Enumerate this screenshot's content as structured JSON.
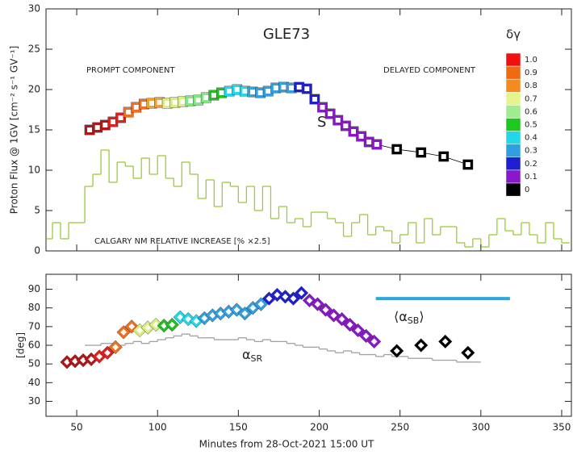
{
  "chart_data": [
    {
      "type": "scatter",
      "title": "GLE73",
      "ylabel": "Proton Flux @ 1GV [cm⁻² s⁻¹ GV⁻¹]",
      "xlim": [
        31,
        356
      ],
      "xticks": [
        50,
        100,
        150,
        200,
        250,
        300,
        350
      ],
      "ylim": [
        0,
        30
      ],
      "yticks": [
        0,
        5,
        10,
        15,
        20,
        25,
        30
      ],
      "annotations": [
        "PROMPT COMPONENT",
        "DELAYED COMPONENT"
      ],
      "series": [
        {
          "name": "S",
          "line_color": "#000000",
          "x": [
            58,
            62.8,
            67.6,
            72.4,
            77.2,
            82,
            86.8,
            91.6,
            96.4,
            101.2,
            106,
            110.8,
            115.6,
            120.4,
            125.2,
            130,
            134.8,
            139.6,
            144.4,
            149.2,
            154,
            158.8,
            163.6,
            168.4,
            173.2,
            178,
            182.8,
            187.6,
            192.4,
            197.2,
            202,
            206.8,
            211.6,
            216.4,
            221.2,
            226,
            230.8,
            235.6,
            248,
            263,
            277,
            292
          ],
          "values": [
            15.0,
            15.3,
            15.6,
            16.0,
            16.5,
            17.2,
            17.8,
            18.2,
            18.3,
            18.4,
            18.3,
            18.4,
            18.5,
            18.6,
            18.7,
            19.0,
            19.3,
            19.6,
            19.8,
            20.0,
            19.8,
            19.7,
            19.6,
            19.8,
            20.2,
            20.3,
            20.2,
            20.3,
            20.1,
            18.8,
            17.8,
            17.0,
            16.2,
            15.5,
            14.8,
            14.2,
            13.5,
            13.2,
            12.6,
            12.2,
            11.7,
            10.7
          ],
          "colors": [
            "#b01818",
            "#b01818",
            "#b01818",
            "#e02020",
            "#e02020",
            "#f07020",
            "#f07020",
            "#f07020",
            "#f0a030",
            "#f0a030",
            "#d8f07a",
            "#d8f07a",
            "#d8f07a",
            "#80e880",
            "#80e880",
            "#80e880",
            "#20c020",
            "#20c020",
            "#20d8e8",
            "#20d8e8",
            "#20d8e8",
            "#30a0e0",
            "#30a0e0",
            "#30a0e0",
            "#30a0e0",
            "#30a0e0",
            "#30a0e0",
            "#1e1ed2",
            "#1e1ed2",
            "#1e1ed2",
            "#8a17c8",
            "#8a17c8",
            "#8a17c8",
            "#8a17c8",
            "#8a17c8",
            "#8a17c8",
            "#8a17c8",
            "#8a17c8",
            "#000000",
            "#000000",
            "#000000",
            "#000000"
          ]
        }
      ],
      "histogram": {
        "name": "CALGARY NM RELATIVE INCREASE [% ×2.5]",
        "color": "#9acd32",
        "bins": [
          30,
          35,
          40,
          45,
          50,
          55,
          60,
          65,
          70,
          75,
          80,
          85,
          90,
          95,
          100,
          105,
          110,
          115,
          120,
          125,
          130,
          135,
          140,
          145,
          150,
          155,
          160,
          165,
          170,
          175,
          180,
          185,
          190,
          195,
          200,
          205,
          210,
          215,
          220,
          225,
          230,
          235,
          240,
          245,
          250,
          255,
          260,
          265,
          270,
          275,
          280,
          285,
          290,
          295,
          300,
          305,
          310,
          315,
          320,
          325,
          330,
          335,
          340,
          345,
          350,
          355
        ],
        "counts": [
          1.5,
          3.5,
          1.5,
          3.5,
          3.5,
          8,
          9.5,
          12.5,
          8.5,
          11,
          10.5,
          9,
          11.5,
          9.5,
          11.8,
          9,
          8,
          11,
          9.5,
          6.5,
          8.8,
          5.5,
          8.5,
          8,
          6,
          8,
          5,
          8,
          4,
          5.5,
          3.5,
          4,
          3,
          4.8,
          4.8,
          4,
          3.5,
          1.8,
          3.5,
          4.5,
          2,
          3,
          2.5,
          1,
          2,
          3.5,
          1,
          4,
          2,
          3,
          3,
          1,
          0.5,
          1.5,
          0.5,
          2,
          4,
          2.5,
          2,
          3.5,
          2,
          1,
          3.5,
          1.5,
          1
        ]
      },
      "colorbar": {
        "title": "δγ",
        "labels": [
          "1.0",
          "0.9",
          "0.8",
          "0.7",
          "0.6",
          "0.5",
          "0.4",
          "0.3",
          "0.2",
          "0.1",
          "0"
        ],
        "colors": [
          "#ee1111",
          "#f06a10",
          "#f58a1e",
          "#e6f58a",
          "#a0ec90",
          "#1ec81e",
          "#22d8e8",
          "#2f9fe0",
          "#1e1ed2",
          "#8a17c8",
          "#000000"
        ]
      }
    },
    {
      "type": "scatter",
      "ylabel": "[deg]",
      "xlabel": "Minutes from 28-Oct-2021 15:00 UT",
      "xlim": [
        31,
        356
      ],
      "xticks": [
        50,
        100,
        150,
        200,
        250,
        300,
        350
      ],
      "ylim": [
        22,
        98
      ],
      "yticks": [
        30,
        40,
        50,
        60,
        70,
        80,
        90
      ],
      "series": [
        {
          "name": {
            "pre": "⟨α",
            "sub": "SB",
            "post": "⟩"
          },
          "x": [
            44,
            49,
            54,
            59,
            64,
            69,
            74,
            79,
            84,
            89,
            94,
            99,
            104,
            109,
            114,
            119,
            124,
            129,
            134,
            139,
            144,
            149,
            154,
            159,
            164,
            169,
            174,
            179,
            184,
            189,
            194,
            199,
            204,
            209,
            214,
            219,
            224,
            229,
            234,
            248,
            263,
            278,
            292
          ],
          "values": [
            51,
            51.5,
            52,
            52.5,
            54,
            56,
            59,
            67,
            70,
            68,
            69.5,
            71,
            70.5,
            71,
            75,
            74,
            73,
            74.5,
            76,
            77,
            78,
            79,
            77,
            80,
            82,
            85,
            87,
            86,
            85,
            88,
            84,
            82,
            79,
            76,
            74,
            71,
            68,
            65,
            62,
            57,
            60,
            62,
            56
          ],
          "colors": [
            "#b01818",
            "#b01818",
            "#b01818",
            "#b01818",
            "#e02020",
            "#e02020",
            "#f07020",
            "#f07020",
            "#f07020",
            "#d8f07a",
            "#d8f07a",
            "#d8f07a",
            "#20c020",
            "#20c020",
            "#20d8e8",
            "#20d8e8",
            "#20d8e8",
            "#30a0e0",
            "#30a0e0",
            "#30a0e0",
            "#30a0e0",
            "#30a0e0",
            "#30a0e0",
            "#30a0e0",
            "#30a0e0",
            "#1e1ed2",
            "#1e1ed2",
            "#1e1ed2",
            "#1e1ed2",
            "#1e1ed2",
            "#8a17c8",
            "#8a17c8",
            "#8a17c8",
            "#8a17c8",
            "#8a17c8",
            "#8a17c8",
            "#8a17c8",
            "#8a17c8",
            "#8a17c8",
            "#000000",
            "#000000",
            "#000000",
            "#000000"
          ]
        }
      ],
      "mean_line": {
        "x": [
          235,
          318
        ],
        "value": 85,
        "color": "#29a9e0"
      },
      "histogram": {
        "name": {
          "pre": "α",
          "sub": "SR"
        },
        "color": "#a0a0a0",
        "bins": [
          55,
          60,
          65,
          70,
          75,
          80,
          85,
          90,
          95,
          100,
          105,
          110,
          115,
          120,
          125,
          130,
          135,
          140,
          145,
          150,
          155,
          160,
          165,
          170,
          175,
          180,
          185,
          190,
          195,
          200,
          205,
          210,
          215,
          220,
          225,
          230,
          235,
          240,
          245,
          250,
          255,
          260,
          265,
          270,
          275,
          280,
          285,
          290,
          295,
          300
        ],
        "counts": [
          60,
          60,
          61,
          61,
          60,
          61,
          62,
          61,
          62,
          63,
          64,
          65,
          66,
          65,
          64,
          64,
          63,
          63,
          63,
          64,
          63,
          62,
          63,
          62,
          62,
          61,
          60,
          59,
          59,
          58,
          57,
          56,
          57,
          56,
          55,
          55,
          54,
          55,
          54,
          54,
          53,
          53,
          53,
          52,
          52,
          52,
          51,
          51,
          51
        ]
      }
    }
  ]
}
